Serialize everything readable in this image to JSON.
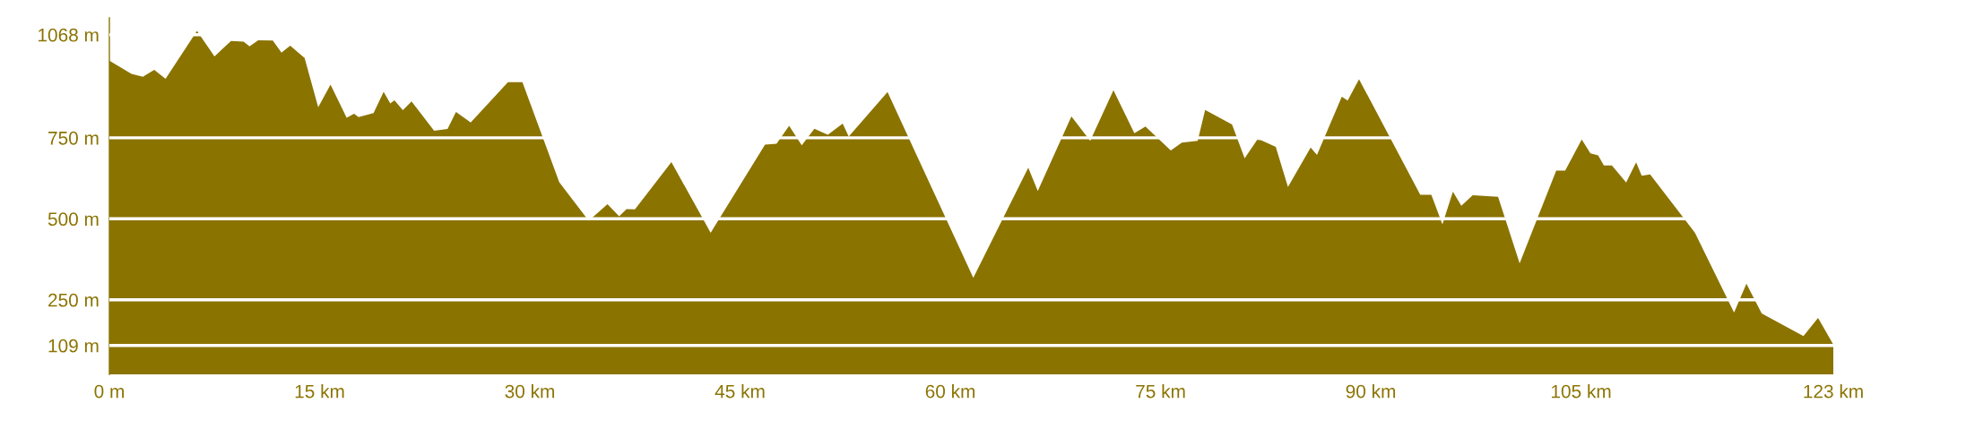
{
  "chart_data": {
    "type": "area",
    "x": [
      0,
      1.58,
      2.39,
      3.2,
      4.01,
      6.25,
      7.5,
      8.68,
      9.58,
      10.0,
      10.62,
      11.66,
      12.28,
      12.9,
      13.93,
      14.9,
      15.78,
      16.93,
      17.46,
      17.78,
      18.85,
      19.57,
      20.04,
      20.34,
      20.94,
      21.56,
      23.17,
      24.13,
      24.73,
      25.78,
      28.44,
      29.47,
      32.1,
      34.2,
      35.54,
      36.37,
      36.9,
      37.5,
      40.1,
      42.9,
      46.78,
      47.6,
      48.5,
      49.4,
      50.3,
      51.26,
      52.32,
      52.75,
      55.52,
      61.64,
      65.56,
      66.24,
      68.64,
      69.98,
      71.64,
      73.13,
      73.92,
      75.73,
      76.52,
      77.65,
      78.18,
      80.1,
      81.0,
      81.9,
      82.2,
      83.22,
      84.09,
      85.71,
      86.16,
      87.93,
      88.35,
      89.16,
      93.53,
      94.32,
      95.11,
      95.86,
      96.46,
      97.27,
      99.08,
      100.62,
      103.23,
      103.87,
      105.05,
      105.67,
      106.22,
      106.63,
      107.2,
      108.22,
      108.93,
      109.33,
      109.93,
      113.13,
      115.92,
      116.8,
      117.89,
      120.87,
      121.91,
      123
    ],
    "series": [
      {
        "color": "#8b7300",
        "values": [
          988,
          947,
          938,
          960,
          932,
          1080,
          1001,
          1049,
          1047,
          1032,
          1051,
          1050,
          1013,
          1034,
          996,
          844,
          914,
          812,
          824,
          814,
          826,
          892,
          856,
          866,
          835,
          862,
          772,
          777,
          830,
          797,
          922,
          922,
          613,
          494,
          545,
          508,
          530,
          529,
          675,
          457,
          729,
          732,
          787,
          727,
          778,
          759,
          794,
          754,
          891,
          318,
          658,
          586,
          816,
          741,
          897,
          764,
          785,
          711,
          735,
          741,
          836,
          791,
          687,
          744,
          742,
          722,
          598,
          720,
          697,
          877,
          865,
          931,
          574,
          574,
          483,
          584,
          540,
          573,
          568,
          363,
          649,
          649,
          745,
          702,
          696,
          665,
          665,
          612,
          674,
          633,
          637,
          457,
          211,
          300,
          208,
          138,
          194,
          112
        ]
      }
    ],
    "xlim": [
      0,
      123
    ],
    "ylim": [
      20,
      1120
    ],
    "xticks": [
      {
        "value": 0,
        "label": "0 m"
      },
      {
        "value": 15,
        "label": "15 km"
      },
      {
        "value": 30,
        "label": "30 km"
      },
      {
        "value": 45,
        "label": "45 km"
      },
      {
        "value": 60,
        "label": "60 km"
      },
      {
        "value": 75,
        "label": "75 km"
      },
      {
        "value": 90,
        "label": "90 km"
      },
      {
        "value": 105,
        "label": "105 km"
      },
      {
        "value": 123,
        "label": "123 km"
      }
    ],
    "yticks": [
      {
        "value": 109,
        "label": "109 m"
      },
      {
        "value": 250,
        "label": "250 m"
      },
      {
        "value": 500,
        "label": "500 m"
      },
      {
        "value": 750,
        "label": "750 m"
      },
      {
        "value": 1068,
        "label": "1068 m"
      }
    ],
    "grid": "y"
  }
}
